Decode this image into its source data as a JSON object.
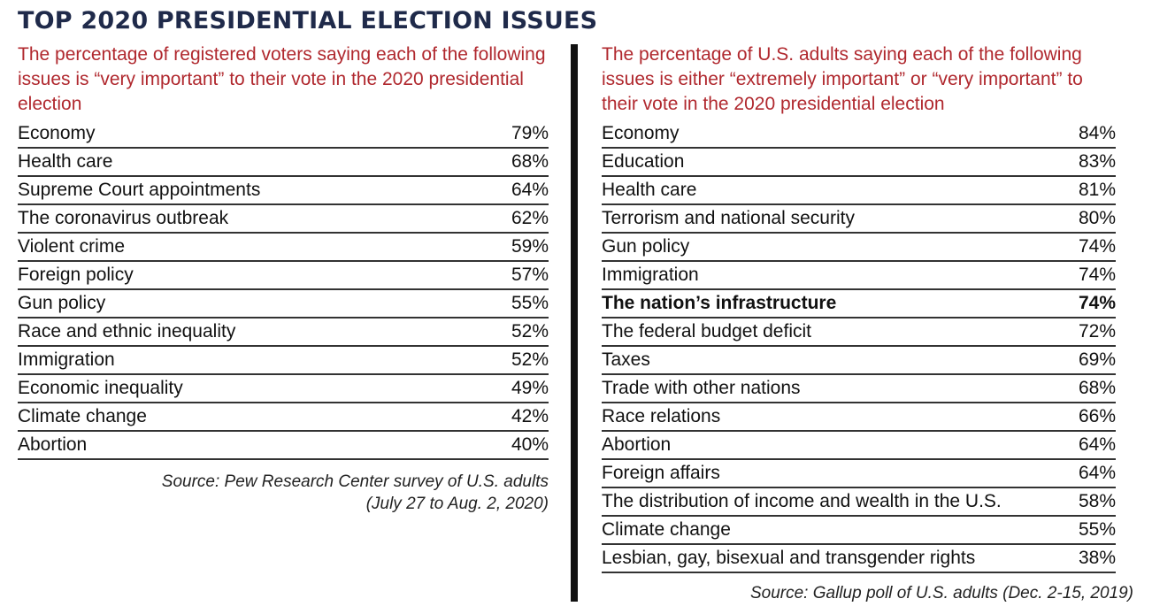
{
  "title": "TOP 2020 PRESIDENTIAL ELECTION ISSUES",
  "colors": {
    "title": "#1f2a4a",
    "subtitle": "#b0282e",
    "rule": "#333333"
  },
  "chart_data": [
    {
      "type": "table",
      "subtitle": "The percentage of registered voters saying each of the following issues is “very important” to their vote in the 2020 presidential election",
      "rows": [
        {
          "label": "Economy",
          "value": "79%"
        },
        {
          "label": "Health care",
          "value": "68%"
        },
        {
          "label": "Supreme Court appointments",
          "value": "64%"
        },
        {
          "label": "The coronavirus outbreak",
          "value": "62%"
        },
        {
          "label": "Violent crime",
          "value": "59%"
        },
        {
          "label": "Foreign policy",
          "value": "57%"
        },
        {
          "label": "Gun policy",
          "value": "55%"
        },
        {
          "label": "Race and ethnic inequality",
          "value": "52%"
        },
        {
          "label": "Immigration",
          "value": "52%"
        },
        {
          "label": "Economic inequality",
          "value": "49%"
        },
        {
          "label": "Climate change",
          "value": "42%"
        },
        {
          "label": "Abortion",
          "value": "40%"
        }
      ],
      "source_line1": "Source: Pew Research Center survey of U.S. adults",
      "source_line2": "(July 27 to Aug. 2, 2020)"
    },
    {
      "type": "table",
      "subtitle": "The percentage of U.S. adults saying each of the following issues is either “extremely important” or “very important” to their vote in the 2020 presidential election",
      "rows": [
        {
          "label": "Economy",
          "value": "84%"
        },
        {
          "label": "Education",
          "value": "83%"
        },
        {
          "label": "Health care",
          "value": "81%"
        },
        {
          "label": "Terrorism and national security",
          "value": "80%"
        },
        {
          "label": "Gun policy",
          "value": "74%"
        },
        {
          "label": "Immigration",
          "value": "74%"
        },
        {
          "label": "The nation’s infrastructure",
          "value": "74%",
          "highlight": true
        },
        {
          "label": "The federal budget deficit",
          "value": "72%"
        },
        {
          "label": "Taxes",
          "value": "69%"
        },
        {
          "label": "Trade with other nations",
          "value": "68%"
        },
        {
          "label": "Race relations",
          "value": "66%"
        },
        {
          "label": "Abortion",
          "value": "64%"
        },
        {
          "label": "Foreign affairs",
          "value": "64%"
        },
        {
          "label": "The distribution of income and wealth in the U.S.",
          "value": "58%"
        },
        {
          "label": "Climate change",
          "value": "55%"
        },
        {
          "label": "Lesbian, gay, bisexual and transgender rights",
          "value": "38%"
        }
      ],
      "source_line1": "Source: Gallup poll of U.S. adults (Dec. 2-15, 2019)"
    }
  ]
}
